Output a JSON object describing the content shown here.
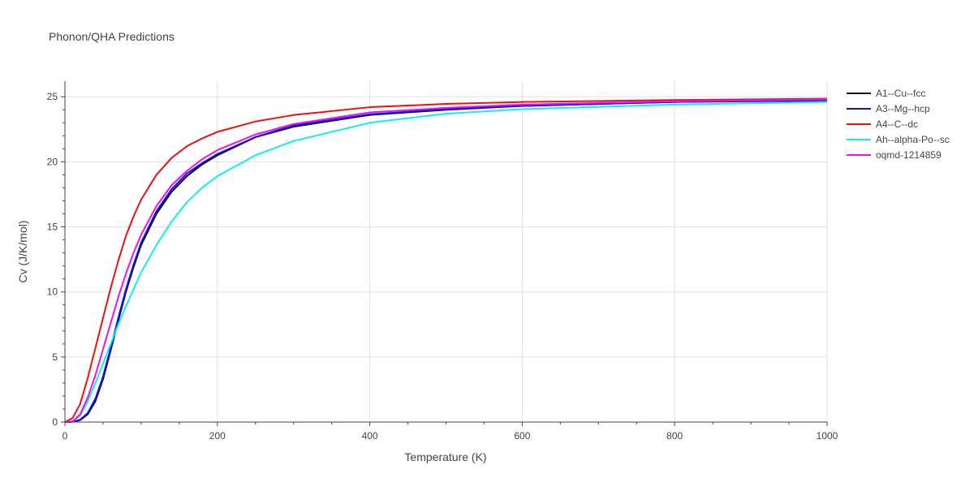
{
  "chart_data": {
    "type": "line",
    "title": "Phonon/QHA Predictions",
    "xlabel": "Temperature (K)",
    "ylabel": "Cv (J/K/mol)",
    "xlim": [
      0,
      1000
    ],
    "ylim": [
      0,
      26.2
    ],
    "xticks": [
      0,
      200,
      400,
      600,
      800,
      1000
    ],
    "yticks": [
      0,
      5,
      10,
      15,
      20,
      25
    ],
    "grid": true,
    "legend_position": "top-right",
    "series": [
      {
        "name": "A1--Cu--fcc",
        "color": "#111111",
        "x": [
          0,
          10,
          20,
          30,
          40,
          50,
          60,
          70,
          80,
          90,
          100,
          120,
          140,
          160,
          180,
          200,
          250,
          300,
          400,
          500,
          600,
          800,
          1000
        ],
        "y": [
          0,
          0.02,
          0.15,
          0.6,
          1.6,
          3.3,
          5.5,
          7.8,
          10.0,
          11.9,
          13.6,
          16.0,
          17.7,
          18.9,
          19.8,
          20.5,
          21.9,
          22.7,
          23.6,
          24.0,
          24.3,
          24.6,
          24.75
        ]
      },
      {
        "name": "A3--Mg--hcp",
        "color": "#1010ee",
        "x": [
          0,
          10,
          20,
          30,
          40,
          50,
          60,
          70,
          80,
          90,
          100,
          120,
          140,
          160,
          180,
          200,
          250,
          300,
          400,
          500,
          600,
          800,
          1000
        ],
        "y": [
          0,
          0.02,
          0.18,
          0.7,
          1.8,
          3.5,
          5.7,
          8.0,
          10.2,
          12.1,
          13.8,
          16.2,
          17.9,
          19.1,
          19.9,
          20.6,
          21.9,
          22.8,
          23.65,
          24.05,
          24.3,
          24.6,
          24.7
        ]
      },
      {
        "name": "A4--C--dc",
        "color": "#ee1010",
        "x": [
          0,
          10,
          20,
          30,
          40,
          50,
          60,
          70,
          80,
          90,
          100,
          120,
          140,
          160,
          180,
          200,
          250,
          300,
          400,
          500,
          600,
          800,
          1000
        ],
        "y": [
          0,
          0.3,
          1.4,
          3.4,
          5.7,
          8.0,
          10.3,
          12.4,
          14.3,
          15.8,
          17.1,
          19.0,
          20.3,
          21.2,
          21.8,
          22.3,
          23.1,
          23.6,
          24.2,
          24.45,
          24.6,
          24.75,
          24.85
        ]
      },
      {
        "name": "Ah--alpha-Po--sc",
        "color": "#11eeee",
        "x": [
          0,
          10,
          20,
          30,
          40,
          50,
          60,
          70,
          80,
          90,
          100,
          120,
          140,
          160,
          180,
          200,
          250,
          300,
          400,
          500,
          600,
          800,
          1000
        ],
        "y": [
          0,
          0.05,
          0.5,
          1.6,
          3.0,
          4.5,
          6.0,
          7.5,
          8.9,
          10.2,
          11.5,
          13.6,
          15.4,
          16.9,
          18.0,
          18.9,
          20.5,
          21.6,
          23.0,
          23.7,
          24.05,
          24.4,
          24.6
        ]
      },
      {
        "name": "oqmd-1214859",
        "color": "#ee11ee",
        "x": [
          0,
          10,
          20,
          30,
          40,
          50,
          60,
          70,
          80,
          90,
          100,
          120,
          140,
          160,
          180,
          200,
          250,
          300,
          400,
          500,
          600,
          800,
          1000
        ],
        "y": [
          0,
          0.05,
          0.6,
          1.9,
          3.6,
          5.6,
          7.6,
          9.6,
          11.4,
          13.0,
          14.4,
          16.6,
          18.2,
          19.3,
          20.2,
          20.9,
          22.1,
          22.9,
          23.8,
          24.15,
          24.4,
          24.65,
          24.8
        ]
      }
    ]
  }
}
